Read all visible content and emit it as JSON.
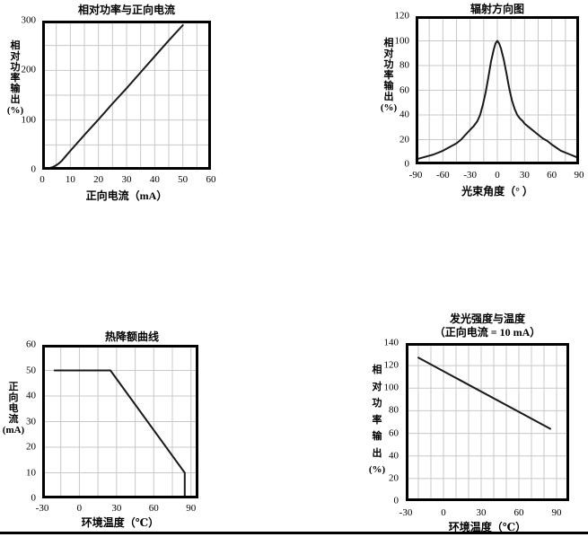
{
  "colors": {
    "axis": "#000000",
    "grid": "#c8c8c8",
    "curve": "#1a1a1a",
    "text": "#000000"
  },
  "chart_data": [
    {
      "type": "line",
      "title": "相对功率与正向电流",
      "xlabel": "正向电流（mA）",
      "ylabel": "相对功率输出(%)",
      "ylabel_lines": [
        "相",
        "对",
        "功",
        "率",
        "输",
        "出",
        "(%)"
      ],
      "xlim": [
        0,
        60
      ],
      "ylim": [
        0,
        300
      ],
      "xticks": [
        0,
        10,
        20,
        30,
        40,
        50,
        60
      ],
      "yticks": [
        0,
        100,
        200,
        300
      ],
      "grid_step": {
        "x": 5,
        "y": 50
      },
      "grid": true,
      "legend": "none",
      "points": [
        [
          0,
          0
        ],
        [
          1,
          1
        ],
        [
          2,
          2
        ],
        [
          3,
          4
        ],
        [
          4,
          6
        ],
        [
          5,
          9
        ],
        [
          6,
          13
        ],
        [
          7,
          18
        ],
        [
          8,
          25
        ],
        [
          10,
          38
        ],
        [
          15,
          70
        ],
        [
          20,
          101
        ],
        [
          25,
          133
        ],
        [
          30,
          164
        ],
        [
          35,
          196
        ],
        [
          40,
          228
        ],
        [
          45,
          260
        ],
        [
          50,
          291
        ]
      ]
    },
    {
      "type": "line",
      "title": "辐射方向图",
      "xlabel": "光束角度（° ）",
      "ylabel": "相对功率输出(%)",
      "ylabel_lines": [
        "相",
        "对",
        "功",
        "率",
        "输",
        "出",
        "(%)"
      ],
      "xlim": [
        -90,
        90
      ],
      "ylim": [
        0,
        120
      ],
      "xticks": [
        -90,
        -60,
        -30,
        0,
        30,
        60,
        90
      ],
      "yticks": [
        0,
        20,
        40,
        60,
        80,
        100,
        120
      ],
      "grid_step": {
        "x": 15,
        "y": 20
      },
      "grid": true,
      "legend": "none",
      "points": [
        [
          -90,
          4
        ],
        [
          -80,
          6
        ],
        [
          -70,
          8
        ],
        [
          -60,
          11
        ],
        [
          -50,
          15
        ],
        [
          -45,
          17
        ],
        [
          -40,
          20
        ],
        [
          -35,
          24
        ],
        [
          -30,
          28
        ],
        [
          -26,
          31
        ],
        [
          -22,
          35
        ],
        [
          -19,
          40
        ],
        [
          -16,
          48
        ],
        [
          -13,
          58
        ],
        [
          -10,
          70
        ],
        [
          -7,
          83
        ],
        [
          -4,
          93
        ],
        [
          -2,
          98
        ],
        [
          0,
          100
        ],
        [
          2,
          98
        ],
        [
          4,
          94
        ],
        [
          7,
          85
        ],
        [
          10,
          74
        ],
        [
          13,
          62
        ],
        [
          16,
          52
        ],
        [
          19,
          45
        ],
        [
          22,
          40
        ],
        [
          25,
          37
        ],
        [
          28,
          35
        ],
        [
          30,
          33
        ],
        [
          35,
          30
        ],
        [
          40,
          27
        ],
        [
          45,
          24
        ],
        [
          50,
          21
        ],
        [
          55,
          19
        ],
        [
          60,
          16
        ],
        [
          70,
          11
        ],
        [
          80,
          8
        ],
        [
          90,
          5
        ]
      ]
    },
    {
      "type": "line",
      "title": "热降额曲线",
      "xlabel": "环境温度（℃）",
      "ylabel": "正向电流(mA)",
      "ylabel_lines": [
        "正",
        "向",
        "电",
        "流",
        "(mA)"
      ],
      "xlim": [
        -30,
        96
      ],
      "ylim": [
        0,
        60
      ],
      "xticks": [
        -30,
        0,
        30,
        60,
        90
      ],
      "yticks": [
        0,
        10,
        20,
        30,
        40,
        50,
        60
      ],
      "grid_step": {
        "x": 15,
        "y": 10
      },
      "grid": true,
      "legend": "none",
      "points": [
        [
          -20,
          50
        ],
        [
          25,
          50
        ],
        [
          85,
          10
        ],
        [
          85,
          0
        ]
      ]
    },
    {
      "type": "line",
      "title": "发光强度与温度",
      "subtitle": "（正向电流 = 10 mA）",
      "xlabel": "环境温度（℃）",
      "ylabel": "相对功率输出(%)",
      "ylabel_lines": [
        "相",
        "对",
        "功",
        "率",
        "输",
        "出",
        "(%)"
      ],
      "xlim": [
        -30,
        100
      ],
      "ylim": [
        0,
        140
      ],
      "xticks": [
        -30,
        0,
        30,
        60,
        90
      ],
      "yticks": [
        0,
        20,
        40,
        60,
        80,
        100,
        120,
        140
      ],
      "grid_step": {
        "x": 10,
        "y": 20
      },
      "grid": true,
      "legend": "none",
      "points": [
        [
          -20,
          127
        ],
        [
          85,
          64
        ]
      ]
    }
  ]
}
